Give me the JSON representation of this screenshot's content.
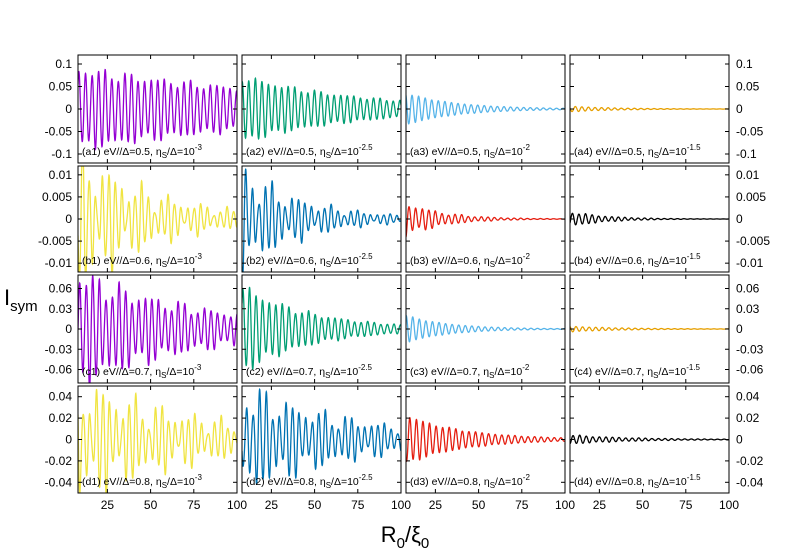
{
  "chart_data": {
    "type": "line",
    "xlabel": {
      "base": "R",
      "sub0": "0",
      "slash": "/ξ",
      "sub1": "0"
    },
    "ylabel": {
      "base": "I",
      "sub": "sym"
    },
    "xlim": [
      8,
      100
    ],
    "xticks": [
      25,
      50,
      75,
      100
    ],
    "grid": false,
    "legend": "none",
    "period": 3.8,
    "rows": [
      {
        "ylim": [
          -0.12,
          0.12
        ],
        "ticks": [
          0.1,
          0.05,
          0,
          -0.05,
          -0.1
        ],
        "tick_labels": [
          "0.1",
          "0.05",
          "0",
          "-0.05",
          "-0.1"
        ]
      },
      {
        "ylim": [
          -0.012,
          0.012
        ],
        "ticks": [
          0.01,
          0.005,
          0,
          -0.005,
          -0.01
        ],
        "tick_labels": [
          "0.01",
          "0.005",
          "0",
          "-0.005",
          "-0.01"
        ]
      },
      {
        "ylim": [
          -0.08,
          0.08
        ],
        "ticks": [
          0.06,
          0.03,
          0,
          -0.03,
          -0.06
        ],
        "tick_labels": [
          "0.06",
          "0.03",
          "0",
          "-0.03",
          "-0.06"
        ]
      },
      {
        "ylim": [
          -0.05,
          0.05
        ],
        "ticks": [
          0.04,
          0.02,
          0,
          -0.02,
          -0.04
        ],
        "tick_labels": [
          "0.04",
          "0.02",
          "0",
          "-0.02",
          "-0.04"
        ]
      }
    ],
    "panels": [
      {
        "row": 0,
        "col": 0,
        "label": {
          "tag": "(a1)",
          "ev": "0.5",
          "exp": "-3"
        },
        "color": "#9400d3",
        "amp0": 0.085,
        "amp1": 0.045,
        "irreg": 0.2
      },
      {
        "row": 0,
        "col": 1,
        "label": {
          "tag": "(a2)",
          "ev": "0.5",
          "exp": "-2.5"
        },
        "color": "#009e73",
        "amp0": 0.07,
        "amp1": 0.018,
        "irreg": 0.15
      },
      {
        "row": 0,
        "col": 2,
        "label": {
          "tag": "(a3)",
          "ev": "0.5",
          "exp": "-2"
        },
        "color": "#56b4e9",
        "amp0": 0.035,
        "amp1": 0.0015,
        "irreg": 0.05
      },
      {
        "row": 0,
        "col": 3,
        "label": {
          "tag": "(a4)",
          "ev": "0.5",
          "exp": "-1.5"
        },
        "color": "#e69f00",
        "amp0": 0.006,
        "amp1": 0.0002,
        "irreg": 0.1
      },
      {
        "row": 1,
        "col": 0,
        "label": {
          "tag": "(b1)",
          "ev": "0.6",
          "exp": "-3"
        },
        "color": "#f0e442",
        "amp0": 0.012,
        "amp1": 0.0015,
        "irreg": 0.7
      },
      {
        "row": 1,
        "col": 1,
        "label": {
          "tag": "(b2)",
          "ev": "0.6",
          "exp": "-2.5"
        },
        "color": "#0072b2",
        "amp0": 0.009,
        "amp1": 0.0007,
        "irreg": 0.6
      },
      {
        "row": 1,
        "col": 2,
        "label": {
          "tag": "(b3)",
          "ev": "0.6",
          "exp": "-2"
        },
        "color": "#e51e10",
        "amp0": 0.0035,
        "amp1": 5e-05,
        "irreg": 0.3
      },
      {
        "row": 1,
        "col": 3,
        "label": {
          "tag": "(b4)",
          "ev": "0.6",
          "exp": "-1.5"
        },
        "color": "#000000",
        "amp0": 0.0016,
        "amp1": 2e-05,
        "irreg": 0.2
      },
      {
        "row": 2,
        "col": 0,
        "label": {
          "tag": "(c1)",
          "ev": "0.7",
          "exp": "-3"
        },
        "color": "#9400d3",
        "amp0": 0.075,
        "amp1": 0.02,
        "irreg": 0.35
      },
      {
        "row": 2,
        "col": 1,
        "label": {
          "tag": "(c2)",
          "ev": "0.7",
          "exp": "-2.5"
        },
        "color": "#009e73",
        "amp0": 0.06,
        "amp1": 0.006,
        "irreg": 0.2
      },
      {
        "row": 2,
        "col": 2,
        "label": {
          "tag": "(c3)",
          "ev": "0.7",
          "exp": "-2"
        },
        "color": "#56b4e9",
        "amp0": 0.02,
        "amp1": 0.0005,
        "irreg": 0.05
      },
      {
        "row": 2,
        "col": 3,
        "label": {
          "tag": "(c4)",
          "ev": "0.7",
          "exp": "-1.5"
        },
        "color": "#e69f00",
        "amp0": 0.004,
        "amp1": 0.0002,
        "irreg": 0.1
      },
      {
        "row": 3,
        "col": 0,
        "label": {
          "tag": "(d1)",
          "ev": "0.8",
          "exp": "-3"
        },
        "color": "#f0e442",
        "amp0": 0.042,
        "amp1": 0.012,
        "irreg": 0.7
      },
      {
        "row": 3,
        "col": 1,
        "label": {
          "tag": "(d2)",
          "ev": "0.8",
          "exp": "-2.5"
        },
        "color": "#0072b2",
        "amp0": 0.04,
        "amp1": 0.01,
        "irreg": 0.55
      },
      {
        "row": 3,
        "col": 2,
        "label": {
          "tag": "(d3)",
          "ev": "0.8",
          "exp": "-2"
        },
        "color": "#e51e10",
        "amp0": 0.022,
        "amp1": 0.0015,
        "irreg": 0.1
      },
      {
        "row": 3,
        "col": 3,
        "label": {
          "tag": "(d4)",
          "ev": "0.8",
          "exp": "-1.5"
        },
        "color": "#000000",
        "amp0": 0.004,
        "amp1": 0.0003,
        "irreg": 0.2
      }
    ]
  }
}
